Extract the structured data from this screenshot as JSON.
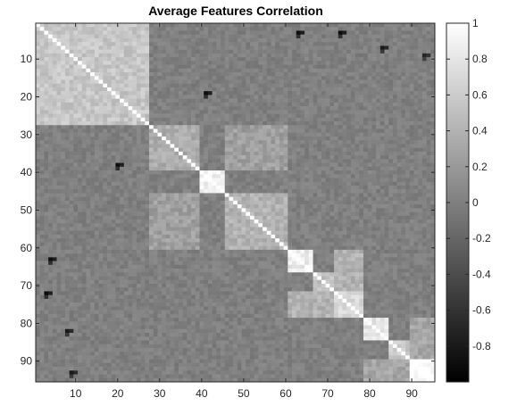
{
  "chart_data": {
    "type": "heatmap",
    "title": "Average Features Correlation",
    "colormap": "gray",
    "matrix_size": 95,
    "x_ticks": [
      10,
      20,
      30,
      40,
      50,
      60,
      70,
      80,
      90
    ],
    "y_ticks": [
      10,
      20,
      30,
      40,
      50,
      60,
      70,
      80,
      90
    ],
    "xlim": [
      0.5,
      95.5
    ],
    "ylim": [
      0.5,
      95.5
    ],
    "color_limits": [
      -1,
      1
    ],
    "colorbar_ticks": [
      "1",
      "0.8",
      "0.6",
      "0.4",
      "0.2",
      "0",
      "-0.2",
      "-0.4",
      "-0.6",
      "-0.8"
    ],
    "colorbar_tick_values": [
      1,
      0.8,
      0.6,
      0.4,
      0.2,
      0,
      -0.2,
      -0.4,
      -0.6,
      -0.8
    ],
    "background_correlation": 0.0,
    "blocks": [
      {
        "rows": [
          1,
          27
        ],
        "cols": [
          1,
          27
        ],
        "value": 0.55
      },
      {
        "rows": [
          28,
          39
        ],
        "cols": [
          28,
          39
        ],
        "value": 0.35
      },
      {
        "rows": [
          40,
          45
        ],
        "cols": [
          40,
          45
        ],
        "value": 0.9
      },
      {
        "rows": [
          46,
          60
        ],
        "cols": [
          46,
          60
        ],
        "value": 0.4
      },
      {
        "rows": [
          61,
          66
        ],
        "cols": [
          61,
          66
        ],
        "value": 0.85
      },
      {
        "rows": [
          67,
          71
        ],
        "cols": [
          67,
          71
        ],
        "value": 0.5
      },
      {
        "rows": [
          72,
          78
        ],
        "cols": [
          72,
          78
        ],
        "value": 0.7
      },
      {
        "rows": [
          79,
          84
        ],
        "cols": [
          79,
          84
        ],
        "value": 0.8
      },
      {
        "rows": [
          85,
          89
        ],
        "cols": [
          85,
          89
        ],
        "value": 0.6
      },
      {
        "rows": [
          90,
          95
        ],
        "cols": [
          90,
          95
        ],
        "value": 0.95
      },
      {
        "rows": [
          28,
          39
        ],
        "cols": [
          46,
          60
        ],
        "value": 0.25
      },
      {
        "rows": [
          46,
          60
        ],
        "cols": [
          28,
          39
        ],
        "value": 0.25
      },
      {
        "rows": [
          61,
          71
        ],
        "cols": [
          72,
          78
        ],
        "value": 0.4
      },
      {
        "rows": [
          72,
          78
        ],
        "cols": [
          61,
          71
        ],
        "value": 0.4
      },
      {
        "rows": [
          79,
          89
        ],
        "cols": [
          90,
          95
        ],
        "value": 0.3
      },
      {
        "rows": [
          90,
          95
        ],
        "cols": [
          79,
          89
        ],
        "value": 0.3
      }
    ],
    "strong_negative_cells": [
      {
        "row": 3,
        "col": 63,
        "value": -0.9
      },
      {
        "row": 3,
        "col": 73,
        "value": -0.9
      },
      {
        "row": 19,
        "col": 41,
        "value": -0.9
      },
      {
        "row": 7,
        "col": 83,
        "value": -0.8
      },
      {
        "row": 9,
        "col": 93,
        "value": -0.7
      },
      {
        "row": 38,
        "col": 20,
        "value": -0.9
      },
      {
        "row": 63,
        "col": 4,
        "value": -0.9
      },
      {
        "row": 72,
        "col": 3,
        "value": -0.9
      },
      {
        "row": 82,
        "col": 8,
        "value": -0.8
      },
      {
        "row": 93,
        "col": 9,
        "value": -0.8
      }
    ]
  }
}
